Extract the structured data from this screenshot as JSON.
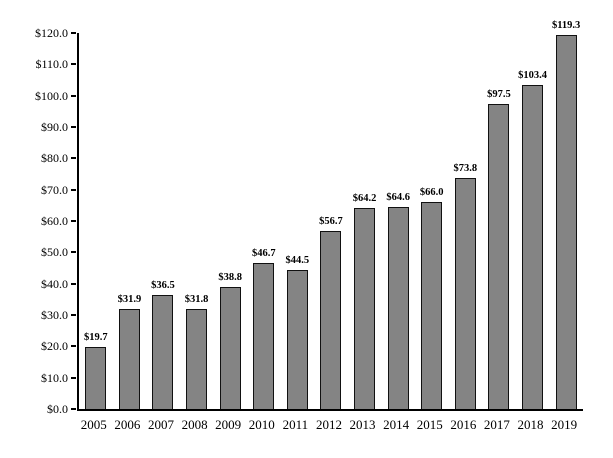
{
  "chart_data": {
    "type": "bar",
    "title": "",
    "xlabel": "",
    "ylabel": "",
    "categories": [
      "2005",
      "2006",
      "2007",
      "2008",
      "2009",
      "2010",
      "2011",
      "2012",
      "2013",
      "2014",
      "2015",
      "2016",
      "2017",
      "2018",
      "2019"
    ],
    "values": [
      19.7,
      31.9,
      36.5,
      31.8,
      38.8,
      46.7,
      44.5,
      56.7,
      64.2,
      64.6,
      66.0,
      73.8,
      97.5,
      103.4,
      119.3
    ],
    "value_labels": [
      "$19.7",
      "$31.9",
      "$36.5",
      "$31.8",
      "$38.8",
      "$46.7",
      "$44.5",
      "$56.7",
      "$64.2",
      "$64.6",
      "$66.0",
      "$73.8",
      "$97.5",
      "$103.4",
      "$119.3"
    ],
    "ylim": [
      0,
      120
    ],
    "ytick_step": 10,
    "ytick_labels": [
      "$0.0",
      "$10.0",
      "$20.0",
      "$30.0",
      "$40.0",
      "$50.0",
      "$60.0",
      "$70.0",
      "$80.0",
      "$90.0",
      "$100.0",
      "$110.0",
      "$120.0"
    ],
    "grid": false,
    "legend": null,
    "colors": {
      "bar_fill": "#848484",
      "bar_border": "#111111",
      "axis": "#000000",
      "text": "#000000",
      "background": "#ffffff"
    }
  }
}
